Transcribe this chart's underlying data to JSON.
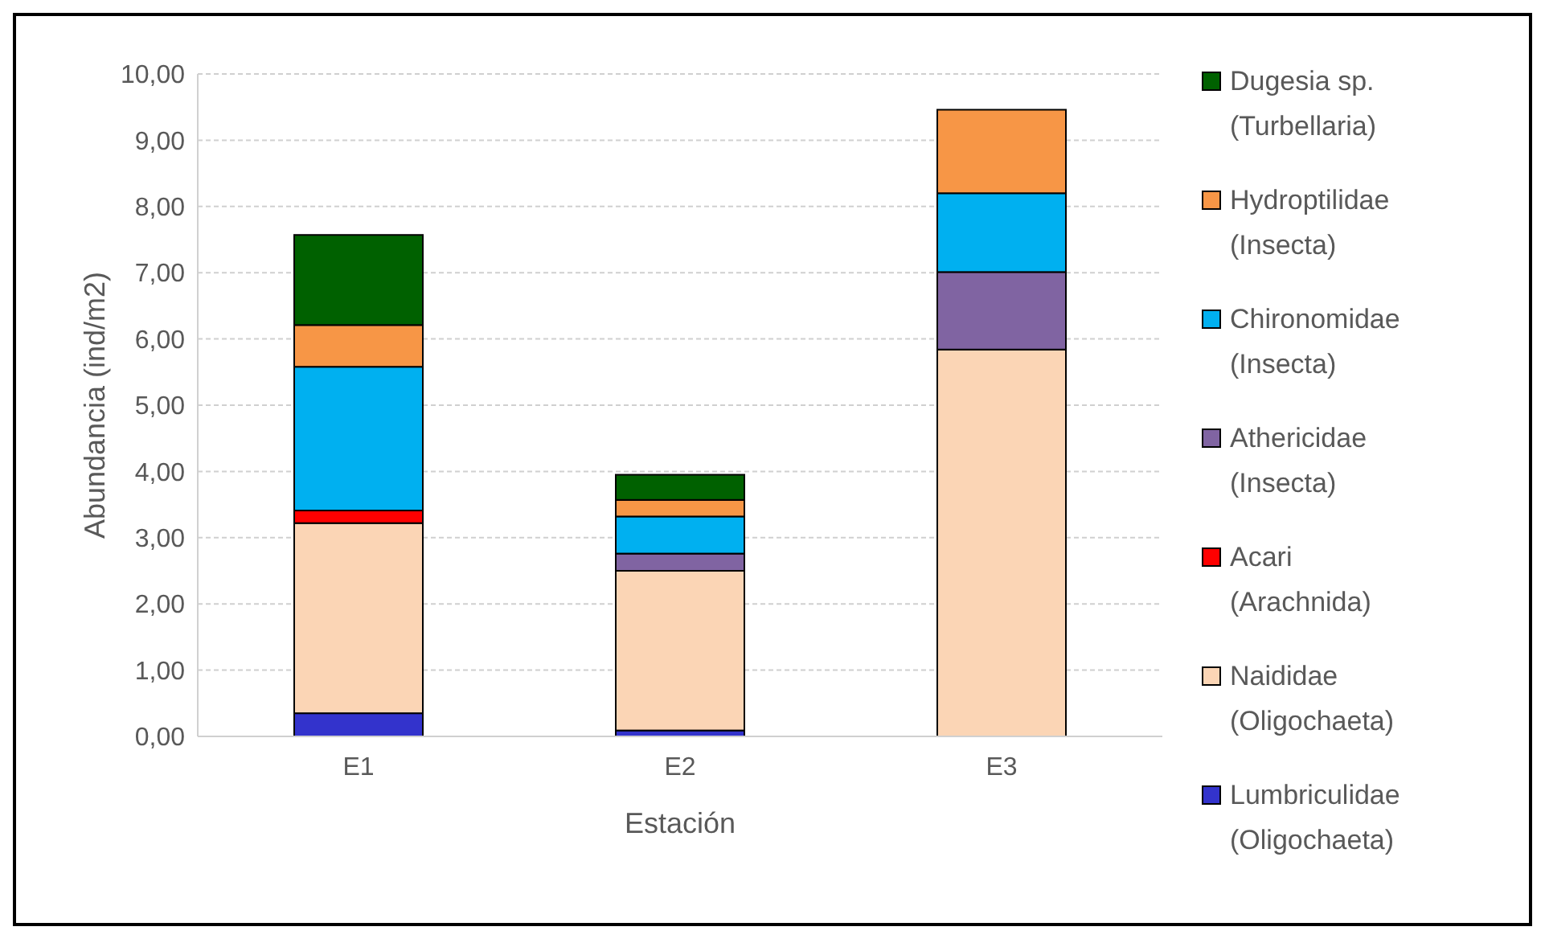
{
  "chart_data": {
    "type": "bar",
    "stacked": true,
    "xlabel": "Estación",
    "ylabel": "Abundancia (ind/m2)",
    "categories": [
      "E1",
      "E2",
      "E3"
    ],
    "series": [
      {
        "name": "Lumbriculidae (Oligochaeta)",
        "color": "#3333cc",
        "values": [
          0.35,
          0.09,
          0
        ]
      },
      {
        "name": "Naididae (Oligochaeta)",
        "color": "#fbd5b5",
        "values": [
          2.87,
          2.41,
          5.84
        ]
      },
      {
        "name": "Acari (Arachnida)",
        "color": "#ff0000",
        "values": [
          0.19,
          0,
          0
        ]
      },
      {
        "name": "Athericidae (Insecta)",
        "color": "#8064a2",
        "values": [
          0,
          0.26,
          1.17
        ]
      },
      {
        "name": "Chironomidae (Insecta)",
        "color": "#00b0f0",
        "values": [
          2.17,
          0.56,
          1.19
        ]
      },
      {
        "name": "Hydroptilidae (Insecta)",
        "color": "#f79646",
        "values": [
          0.63,
          0.25,
          1.26
        ]
      },
      {
        "name": "Dugesia sp. (Turbellaria)",
        "color": "#006100",
        "values": [
          1.36,
          0.38,
          0
        ]
      }
    ],
    "ylim": [
      0,
      10
    ],
    "yticks": [
      {
        "value": 0,
        "label": "0,00"
      },
      {
        "value": 1,
        "label": "1,00"
      },
      {
        "value": 2,
        "label": "2,00"
      },
      {
        "value": 3,
        "label": "3,00"
      },
      {
        "value": 4,
        "label": "4,00"
      },
      {
        "value": 5,
        "label": "5,00"
      },
      {
        "value": 6,
        "label": "6,00"
      },
      {
        "value": 7,
        "label": "7,00"
      },
      {
        "value": 8,
        "label": "8,00"
      },
      {
        "value": 9,
        "label": "9,00"
      },
      {
        "value": 10,
        "label": "10,00"
      }
    ],
    "grid": "y",
    "legend": "right"
  }
}
